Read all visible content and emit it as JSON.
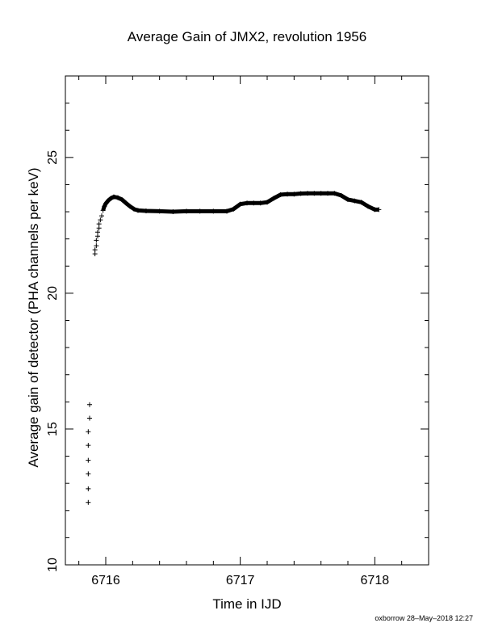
{
  "chart_data": {
    "type": "scatter",
    "title": "Average Gain of JMX2, revolution 1956",
    "xlabel": "Time in IJD",
    "ylabel": "Average gain of detector (PHA channels per keV)",
    "xlim": [
      6715.7,
      6718.4
    ],
    "ylim": [
      10,
      28
    ],
    "xticks": [
      6716,
      6717,
      6718
    ],
    "xtick_labels": [
      "6716",
      "6717",
      "6718"
    ],
    "yticks": [
      10,
      15,
      20,
      25
    ],
    "ytick_labels": [
      "10",
      "15",
      "20",
      "25"
    ],
    "grid": false,
    "marker": "+",
    "footer": "oxborrow 28–May–2018 12:27",
    "series": [
      {
        "points": [
          [
            6715.87,
            12.3
          ],
          [
            6715.87,
            12.8
          ],
          [
            6715.87,
            13.35
          ],
          [
            6715.87,
            13.85
          ],
          [
            6715.87,
            14.4
          ],
          [
            6715.87,
            14.9
          ],
          [
            6715.88,
            15.4
          ],
          [
            6715.88,
            15.9
          ],
          [
            6715.92,
            21.45
          ],
          [
            6715.92,
            21.6
          ],
          [
            6715.93,
            21.75
          ],
          [
            6715.93,
            21.95
          ],
          [
            6715.94,
            22.1
          ],
          [
            6715.94,
            22.25
          ],
          [
            6715.95,
            22.4
          ],
          [
            6715.95,
            22.55
          ],
          [
            6715.96,
            22.7
          ],
          [
            6715.97,
            22.85
          ],
          [
            6715.98,
            23.05
          ],
          [
            6715.99,
            23.2
          ],
          [
            6716.0,
            23.3
          ],
          [
            6716.02,
            23.42
          ],
          [
            6716.04,
            23.5
          ],
          [
            6716.06,
            23.55
          ],
          [
            6716.09,
            23.52
          ],
          [
            6716.12,
            23.45
          ],
          [
            6716.15,
            23.32
          ],
          [
            6716.18,
            23.2
          ],
          [
            6716.21,
            23.1
          ],
          [
            6716.24,
            23.05
          ],
          [
            6716.3,
            23.03
          ],
          [
            6716.4,
            23.02
          ],
          [
            6716.5,
            23.0
          ],
          [
            6716.6,
            23.02
          ],
          [
            6716.7,
            23.02
          ],
          [
            6716.8,
            23.02
          ],
          [
            6716.9,
            23.02
          ],
          [
            6716.95,
            23.1
          ],
          [
            6717.0,
            23.28
          ],
          [
            6717.05,
            23.32
          ],
          [
            6717.1,
            23.32
          ],
          [
            6717.15,
            23.32
          ],
          [
            6717.2,
            23.35
          ],
          [
            6717.25,
            23.5
          ],
          [
            6717.3,
            23.63
          ],
          [
            6717.35,
            23.65
          ],
          [
            6717.4,
            23.65
          ],
          [
            6717.45,
            23.67
          ],
          [
            6717.5,
            23.68
          ],
          [
            6717.55,
            23.68
          ],
          [
            6717.6,
            23.68
          ],
          [
            6717.65,
            23.68
          ],
          [
            6717.7,
            23.68
          ],
          [
            6717.75,
            23.6
          ],
          [
            6717.8,
            23.45
          ],
          [
            6717.85,
            23.4
          ],
          [
            6717.9,
            23.35
          ],
          [
            6717.95,
            23.2
          ],
          [
            6718.0,
            23.08
          ],
          [
            6718.03,
            23.08
          ]
        ]
      }
    ]
  }
}
